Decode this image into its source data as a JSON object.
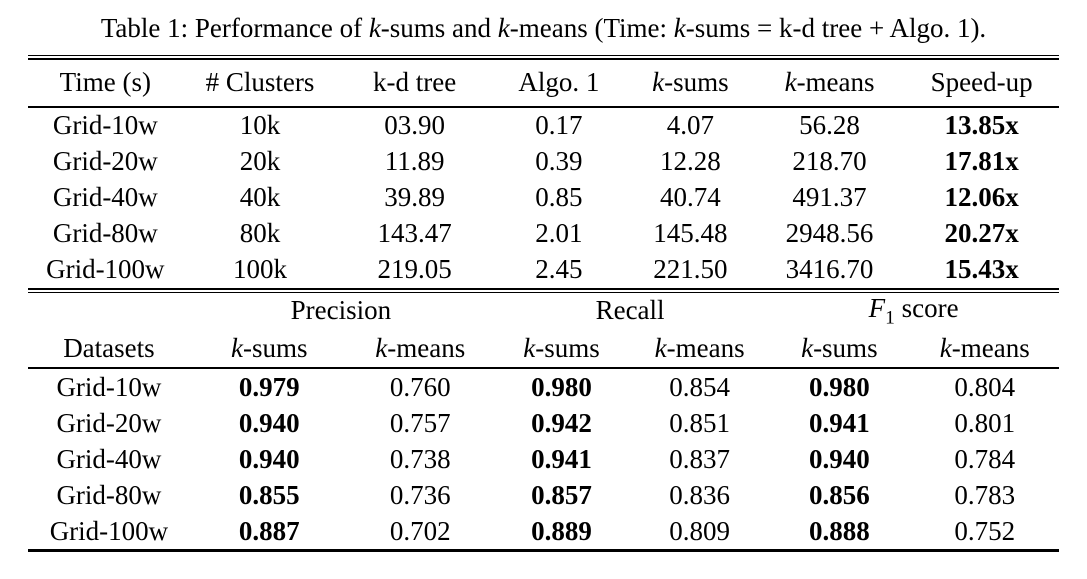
{
  "colors": {
    "text": "#000000",
    "background": "#ffffff",
    "rule": "#000000"
  },
  "caption": {
    "seg1": "Table 1: Performance of ",
    "seg2": "k",
    "seg3": "-sums and ",
    "seg4": "k",
    "seg5": "-means (Time: ",
    "seg6": "k",
    "seg7": "-sums = k-d tree + Algo. 1)."
  },
  "table1": {
    "headers": [
      {
        "text": "Time (s)"
      },
      {
        "text": "# Clusters"
      },
      {
        "text": "k-d tree"
      },
      {
        "text": "Algo. 1"
      },
      {
        "it": "k",
        "rest": "-sums"
      },
      {
        "it": "k",
        "rest": "-means"
      },
      {
        "text": "Speed-up"
      }
    ],
    "bold_cols": [
      6
    ],
    "rows": [
      [
        "Grid-10w",
        "10k",
        "03.90",
        "0.17",
        "4.07",
        "56.28",
        "13.85x"
      ],
      [
        "Grid-20w",
        "20k",
        "11.89",
        "0.39",
        "12.28",
        "218.70",
        "17.81x"
      ],
      [
        "Grid-40w",
        "40k",
        "39.89",
        "0.85",
        "40.74",
        "491.37",
        "12.06x"
      ],
      [
        "Grid-80w",
        "80k",
        "143.47",
        "2.01",
        "145.48",
        "2948.56",
        "20.27x"
      ],
      [
        "Grid-100w",
        "100k",
        "219.05",
        "2.45",
        "221.50",
        "3416.70",
        "15.43x"
      ]
    ]
  },
  "table2": {
    "group_headers": [
      {
        "label": "Precision"
      },
      {
        "label": "Recall"
      },
      {
        "f_it": "F",
        "f_sub": "1",
        "rest": " score"
      }
    ],
    "datasets_header": "Datasets",
    "sub": [
      {
        "it": "k",
        "rest": "-sums"
      },
      {
        "it": "k",
        "rest": "-means"
      },
      {
        "it": "k",
        "rest": "-sums"
      },
      {
        "it": "k",
        "rest": "-means"
      },
      {
        "it": "k",
        "rest": "-sums"
      },
      {
        "it": "k",
        "rest": "-means"
      }
    ],
    "bold_cols": [
      1,
      3,
      5
    ],
    "rows": [
      [
        "Grid-10w",
        "0.979",
        "0.760",
        "0.980",
        "0.854",
        "0.980",
        "0.804"
      ],
      [
        "Grid-20w",
        "0.940",
        "0.757",
        "0.942",
        "0.851",
        "0.941",
        "0.801"
      ],
      [
        "Grid-40w",
        "0.940",
        "0.738",
        "0.941",
        "0.837",
        "0.940",
        "0.784"
      ],
      [
        "Grid-80w",
        "0.855",
        "0.736",
        "0.857",
        "0.836",
        "0.856",
        "0.783"
      ],
      [
        "Grid-100w",
        "0.887",
        "0.702",
        "0.889",
        "0.809",
        "0.888",
        "0.752"
      ]
    ]
  }
}
